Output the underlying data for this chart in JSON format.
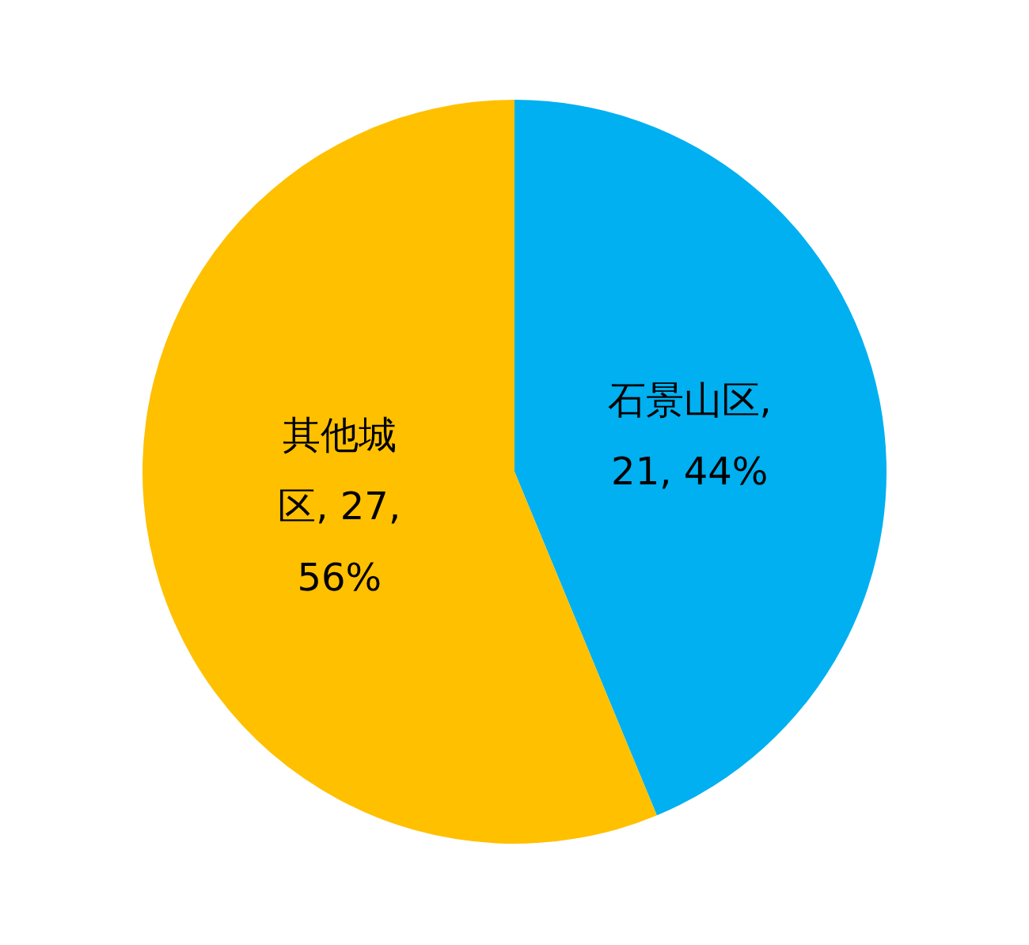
{
  "chart_data": {
    "type": "pie",
    "categories": [
      "石景山区",
      "其他城区"
    ],
    "values": [
      21,
      27
    ],
    "colors": [
      "#00b0f0",
      "#ffc000"
    ],
    "value_labels": [
      ", 21, 44%",
      ", 27, 56%"
    ],
    "legend": false
  }
}
